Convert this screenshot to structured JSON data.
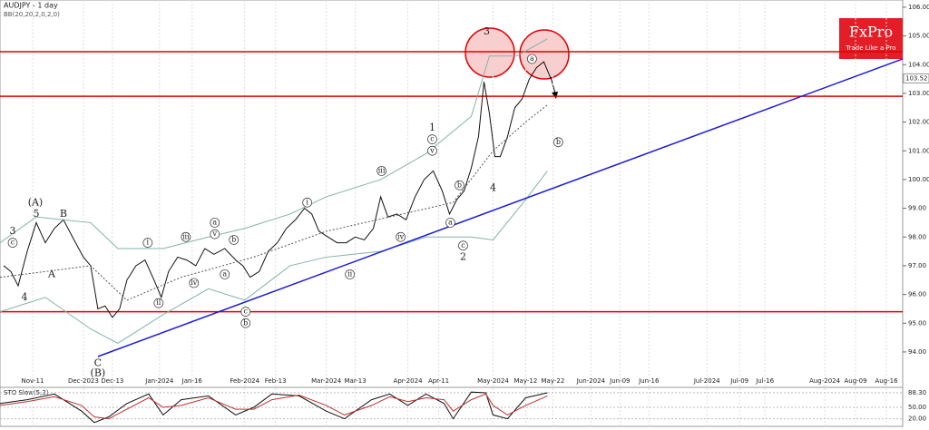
{
  "chart_data": {
    "type": "line",
    "title": "AUDJPY - 1 day",
    "subtitle": "BB(20,20,2,0,2,0)",
    "logo": "FxPro",
    "logo_tagline": "Trade Like a Pro",
    "ylim": [
      92.83,
      106.25
    ],
    "yticks": [
      {
        "value": 94,
        "label": "94.00"
      },
      {
        "value": 95,
        "label": "95.00"
      },
      {
        "value": 96,
        "label": "96.00"
      },
      {
        "value": 97,
        "label": "97.00"
      },
      {
        "value": 98,
        "label": "98.00"
      },
      {
        "value": 99,
        "label": "99.00"
      },
      {
        "value": 100,
        "label": "100.00"
      },
      {
        "value": 101,
        "label": "101.00"
      },
      {
        "value": 102,
        "label": "102.00"
      },
      {
        "value": 103,
        "label": "103.00"
      },
      {
        "value": 104,
        "label": "104.00"
      },
      {
        "value": 105,
        "label": "105.00"
      },
      {
        "value": 106,
        "label": "106.00"
      }
    ],
    "xlim": [
      0,
      249
    ],
    "xticks": [
      {
        "value": 9,
        "label": "Nov-11"
      },
      {
        "value": 23,
        "label": "Dec-2023"
      },
      {
        "value": 31,
        "label": "Dec-13"
      },
      {
        "value": 44,
        "label": "Jan-2024"
      },
      {
        "value": 53,
        "label": "Jan-16"
      },
      {
        "value": 67.5,
        "label": "Feb-2024"
      },
      {
        "value": 76,
        "label": "Feb-13"
      },
      {
        "value": 90,
        "label": "Mar-2024"
      },
      {
        "value": 98,
        "label": "Mar-13"
      },
      {
        "value": 112.5,
        "label": "Apr-2024"
      },
      {
        "value": 121,
        "label": "Apr-11"
      },
      {
        "value": 136,
        "label": "May-2024"
      },
      {
        "value": 145,
        "label": "May-12"
      },
      {
        "value": 152.5,
        "label": "May-22"
      },
      {
        "value": 163,
        "label": "Jun-2024"
      },
      {
        "value": 171,
        "label": "Jun-09"
      },
      {
        "value": 179,
        "label": "Jun-16"
      },
      {
        "value": 195,
        "label": "Jul-2024"
      },
      {
        "value": 204,
        "label": "Jul-09"
      },
      {
        "value": 211,
        "label": "Jul-16"
      },
      {
        "value": 227.5,
        "label": "Aug-2024"
      },
      {
        "value": 236,
        "label": "Aug-09"
      },
      {
        "value": 244.5,
        "label": "Aug-16"
      }
    ],
    "current_price": 103.52,
    "current_price_label": "103.52",
    "series": [
      {
        "color": "#111111",
        "x": [
          1,
          3,
          5,
          7.5,
          10,
          12.5,
          15,
          17.5,
          20,
          23,
          25,
          27,
          29,
          31,
          33,
          35,
          37.5,
          40,
          42.5,
          44.5,
          46.5,
          49,
          51.5,
          54,
          56.5,
          59,
          62,
          65,
          67,
          69,
          71.5,
          74,
          76.5,
          79,
          81.5,
          84,
          86,
          88,
          90.5,
          93,
          95.5,
          98,
          100.5,
          103,
          105,
          107,
          109.5,
          112,
          114.5,
          117,
          119.5,
          122,
          124,
          126,
          128,
          130,
          132,
          133.5,
          135,
          136.5,
          138,
          140,
          142,
          144,
          146,
          148,
          150,
          152
        ],
        "values": [
          97.0,
          96.8,
          96.3,
          97.5,
          98.5,
          97.8,
          98.3,
          98.6,
          98.0,
          97.3,
          97.0,
          95.5,
          95.6,
          95.2,
          95.5,
          96.5,
          97.0,
          97.2,
          96.5,
          95.9,
          96.8,
          97.3,
          97.2,
          97.0,
          97.6,
          97.4,
          97.6,
          97.2,
          97.0,
          96.6,
          96.8,
          97.5,
          97.8,
          98.3,
          98.6,
          99.0,
          98.8,
          98.2,
          98.0,
          97.8,
          97.8,
          98.0,
          97.9,
          98.3,
          99.4,
          98.7,
          98.8,
          98.6,
          99.4,
          100.0,
          100.3,
          99.6,
          98.8,
          99.3,
          99.6,
          100.4,
          101.5,
          103.4,
          102.3,
          100.8,
          100.8,
          101.5,
          102.5,
          102.8,
          103.5,
          103.9,
          104.1,
          103.5
        ]
      },
      {
        "color": "#7fb3a8",
        "x": [
          0,
          10,
          25,
          32.5,
          45,
          57.5,
          67.5,
          80,
          90,
          105,
          117.5,
          130,
          135,
          142.5,
          151
        ],
        "values": [
          97.8,
          98.7,
          98.5,
          97.6,
          97.6,
          98.0,
          98.3,
          98.8,
          99.4,
          100.0,
          100.9,
          102.2,
          104.3,
          104.3,
          104.9
        ]
      },
      {
        "color": "#555555",
        "dashed": true,
        "x": [
          0,
          25,
          35,
          50,
          70,
          90,
          107.5,
          125,
          136,
          145,
          151
        ],
        "values": [
          96.6,
          97.0,
          95.8,
          96.6,
          97.3,
          98.2,
          98.7,
          99.2,
          101.0,
          102.0,
          102.6
        ]
      },
      {
        "color": "#7fb3a8",
        "x": [
          0,
          12.5,
          25,
          32.5,
          45,
          57.5,
          67.5,
          80,
          90,
          105,
          117.5,
          130,
          136,
          145,
          151
        ],
        "values": [
          95.4,
          95.9,
          94.8,
          94.3,
          95.3,
          96.2,
          95.8,
          97.0,
          97.3,
          97.5,
          98.0,
          98.0,
          97.9,
          99.3,
          100.3
        ]
      }
    ],
    "levels": [
      {
        "value": 104.45,
        "color": "#e00000"
      },
      {
        "value": 102.9,
        "color": "#e00000"
      },
      {
        "value": 95.4,
        "color": "#e00000"
      }
    ],
    "trendline": {
      "color": "#1a1adc",
      "x": [
        27,
        249
      ],
      "values": [
        93.84,
        104.2
      ]
    },
    "annotations": [
      {
        "text": "3",
        "x": 3.5,
        "y": 98.2
      },
      {
        "text": "c",
        "x": 3.5,
        "y": 97.8,
        "circled": true
      },
      {
        "text": "4",
        "x": 6.75,
        "y": 95.9
      },
      {
        "text": "(A)",
        "x": 9.75,
        "y": 99.2
      },
      {
        "text": "5",
        "x": 10,
        "y": 98.8
      },
      {
        "text": "B",
        "x": 17.5,
        "y": 98.8
      },
      {
        "text": "A",
        "x": 14.25,
        "y": 96.7
      },
      {
        "text": "C",
        "x": 27,
        "y": 93.6
      },
      {
        "text": "(B)",
        "x": 27,
        "y": 93.25
      },
      {
        "text": "i",
        "x": 40.75,
        "y": 97.8,
        "circled": true
      },
      {
        "text": "ii",
        "x": 43.75,
        "y": 95.7,
        "circled": true
      },
      {
        "text": "iii",
        "x": 51.25,
        "y": 98.0,
        "circled": true
      },
      {
        "text": "iv",
        "x": 53.5,
        "y": 96.4,
        "circled": true
      },
      {
        "text": "a",
        "x": 59.25,
        "y": 98.5,
        "circled": true
      },
      {
        "text": "v",
        "x": 59.25,
        "y": 98.1,
        "circled": true
      },
      {
        "text": "b",
        "x": 64.5,
        "y": 97.9,
        "circled": true
      },
      {
        "text": "a",
        "x": 62,
        "y": 96.7,
        "circled": true
      },
      {
        "text": "c",
        "x": 67.75,
        "y": 95.4,
        "circled": true
      },
      {
        "text": "b",
        "x": 67.75,
        "y": 95.0,
        "circled": true
      },
      {
        "text": "i",
        "x": 84.75,
        "y": 99.2,
        "circled": true
      },
      {
        "text": "ii",
        "x": 96.5,
        "y": 96.7,
        "circled": true
      },
      {
        "text": "iii",
        "x": 105.25,
        "y": 100.3,
        "circled": true
      },
      {
        "text": "iv",
        "x": 110.5,
        "y": 98.0,
        "circled": true
      },
      {
        "text": "1",
        "x": 119.25,
        "y": 101.8
      },
      {
        "text": "c",
        "x": 119.25,
        "y": 101.4,
        "circled": true
      },
      {
        "text": "v",
        "x": 119.25,
        "y": 101.0,
        "circled": true
      },
      {
        "text": "b",
        "x": 126.75,
        "y": 99.8,
        "circled": true
      },
      {
        "text": "a",
        "x": 124.25,
        "y": 98.5,
        "circled": true
      },
      {
        "text": "c",
        "x": 127.75,
        "y": 97.7,
        "circled": true
      },
      {
        "text": "2",
        "x": 127.75,
        "y": 97.3
      },
      {
        "text": "3",
        "x": 134.25,
        "y": 105.15
      },
      {
        "text": "4",
        "x": 136,
        "y": 99.7
      },
      {
        "text": "a",
        "x": 146.75,
        "y": 104.2,
        "circled": true
      },
      {
        "text": "b",
        "x": 154,
        "y": 101.3,
        "circled": true
      }
    ],
    "oscillator": {
      "title": "STO Slow(5,3)",
      "ylim": [
        0,
        100
      ],
      "yticks": [
        {
          "value": 88.3,
          "label": "88.30"
        },
        {
          "value": 50,
          "label": "50.00"
        },
        {
          "value": 20,
          "label": "20.00"
        }
      ],
      "series": [
        {
          "color": "#111111",
          "x": [
            0,
            7.5,
            15,
            22.5,
            26,
            30,
            35,
            41,
            45,
            50,
            57.5,
            65,
            70,
            75,
            82.5,
            90,
            95,
            102.5,
            107.5,
            112.5,
            117.5,
            122.5,
            125,
            130,
            134,
            136,
            140,
            145,
            151
          ],
          "values": [
            60,
            70,
            85,
            40,
            10,
            25,
            60,
            85,
            30,
            70,
            80,
            30,
            50,
            85,
            80,
            40,
            20,
            70,
            85,
            55,
            85,
            60,
            20,
            90,
            88,
            30,
            20,
            75,
            88
          ]
        },
        {
          "color": "#c03030",
          "x": [
            0,
            7.5,
            15,
            22.5,
            26,
            30,
            35,
            41,
            45,
            50,
            57.5,
            65,
            70,
            75,
            82.5,
            90,
            95,
            102.5,
            107.5,
            112.5,
            117.5,
            122.5,
            125,
            130,
            134,
            136,
            140,
            145,
            151
          ],
          "values": [
            55,
            65,
            78,
            55,
            25,
            20,
            45,
            75,
            50,
            55,
            75,
            45,
            45,
            70,
            82,
            55,
            30,
            55,
            78,
            65,
            75,
            70,
            40,
            70,
            85,
            55,
            30,
            55,
            80
          ]
        }
      ]
    }
  }
}
